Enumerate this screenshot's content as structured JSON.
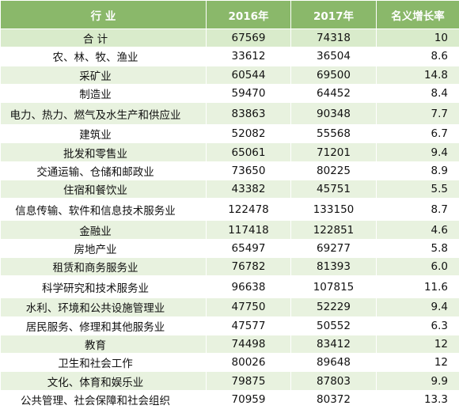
{
  "table": {
    "headers": [
      "行  业",
      "2016年",
      "2017年",
      "名义增长率"
    ],
    "rows": [
      {
        "industry": "合  计",
        "y2016": "67569",
        "y2017": "74318",
        "growth": "10"
      },
      {
        "industry": "农、林、牧、渔业",
        "y2016": "33612",
        "y2017": "36504",
        "growth": "8.6"
      },
      {
        "industry": "采矿业",
        "y2016": "60544",
        "y2017": "69500",
        "growth": "14.8"
      },
      {
        "industry": "制造业",
        "y2016": "59470",
        "y2017": "64452",
        "growth": "8.4"
      },
      {
        "industry": "电力、热力、燃气及水生产和供应业",
        "y2016": "83863",
        "y2017": "90348",
        "growth": "7.7"
      },
      {
        "industry": "建筑业",
        "y2016": "52082",
        "y2017": "55568",
        "growth": "6.7"
      },
      {
        "industry": "批发和零售业",
        "y2016": "65061",
        "y2017": "71201",
        "growth": "9.4"
      },
      {
        "industry": "交通运输、仓储和邮政业",
        "y2016": "73650",
        "y2017": "80225",
        "growth": "8.9"
      },
      {
        "industry": "住宿和餐饮业",
        "y2016": "43382",
        "y2017": "45751",
        "growth": "5.5"
      },
      {
        "industry": "信息传输、软件和信息技术服务业",
        "y2016": "122478",
        "y2017": "133150",
        "growth": "8.7"
      },
      {
        "industry": "金融业",
        "y2016": "117418",
        "y2017": "122851",
        "growth": "4.6"
      },
      {
        "industry": "房地产业",
        "y2016": "65497",
        "y2017": "69277",
        "growth": "5.8"
      },
      {
        "industry": "租赁和商务服务业",
        "y2016": "76782",
        "y2017": "81393",
        "growth": "6.0"
      },
      {
        "industry": "科学研究和技术服务业",
        "y2016": "96638",
        "y2017": "107815",
        "growth": "11.6"
      },
      {
        "industry": "水利、环境和公共设施管理业",
        "y2016": "47750",
        "y2017": "52229",
        "growth": "9.4"
      },
      {
        "industry": "居民服务、修理和其他服务业",
        "y2016": "47577",
        "y2017": "50552",
        "growth": "6.3"
      },
      {
        "industry": "教育",
        "y2016": "74498",
        "y2017": "83412",
        "growth": "12"
      },
      {
        "industry": "卫生和社会工作",
        "y2016": "80026",
        "y2017": "89648",
        "growth": "12"
      },
      {
        "industry": "文化、体育和娱乐业",
        "y2016": "79875",
        "y2017": "87803",
        "growth": "9.9"
      },
      {
        "industry": "公共管理、社会保障和社会组织",
        "y2016": "70959",
        "y2017": "80372",
        "growth": "13.3"
      }
    ]
  },
  "colors": {
    "header_bg": "#8ab86a",
    "row_odd": "#e8f2df",
    "row_even": "#ffffff"
  }
}
